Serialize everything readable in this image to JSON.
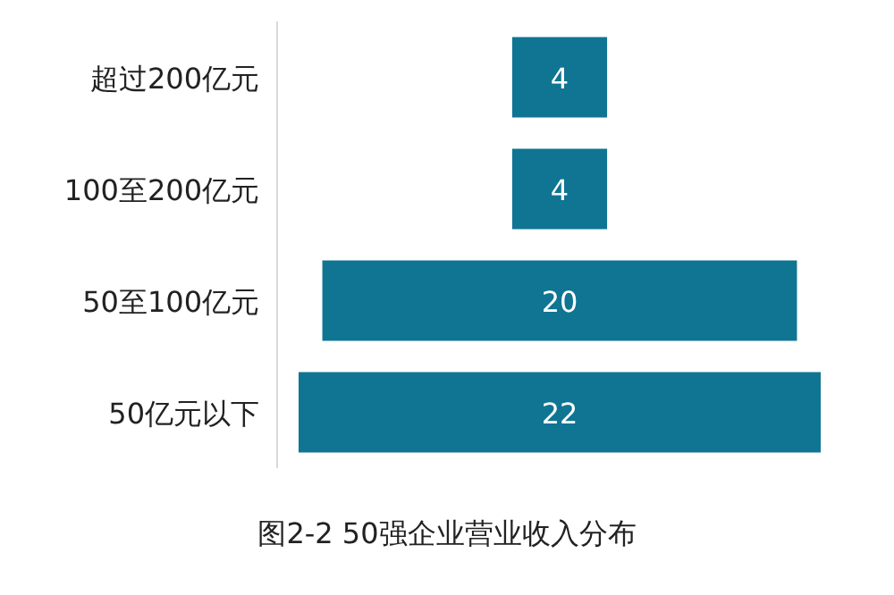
{
  "chart_data": {
    "type": "other",
    "title": "图2-2 50强企业营业收入分布",
    "categories": [
      "超过200亿元",
      "100至200亿元",
      "50至100亿元",
      "50亿元以下"
    ],
    "values": [
      4,
      4,
      20,
      22
    ],
    "color": "#0f7593",
    "data_labels": true
  }
}
